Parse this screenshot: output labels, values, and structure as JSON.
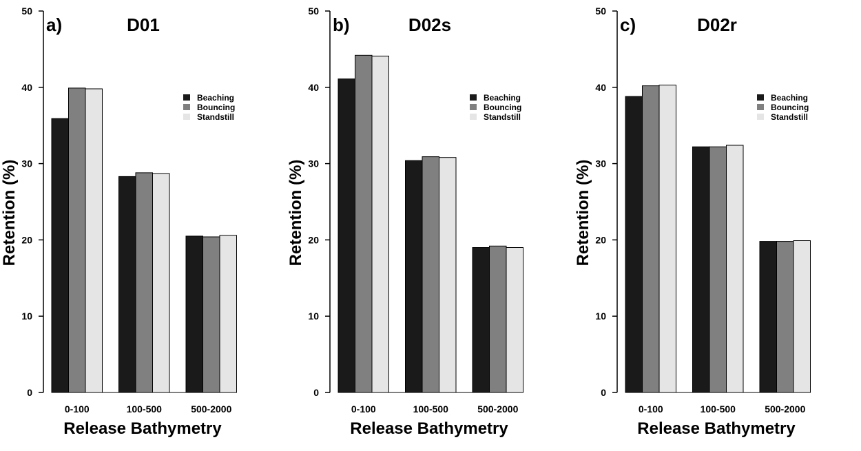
{
  "chart_data": [
    {
      "type": "bar",
      "panel_label": "a)",
      "title": "D01",
      "xlabel": "Release Bathymetry",
      "ylabel": "Retention (%)",
      "ylim": [
        0,
        50
      ],
      "yticks": [
        "0",
        "10",
        "20",
        "30",
        "40",
        "50"
      ],
      "categories": [
        "0-100",
        "100-500",
        "500-2000"
      ],
      "series": [
        {
          "name": "Beaching",
          "color": "#1a1a1a",
          "values": [
            35.9,
            28.3,
            20.5
          ]
        },
        {
          "name": "Bouncing",
          "color": "#808080",
          "values": [
            39.9,
            28.8,
            20.4
          ]
        },
        {
          "name": "Standstill",
          "color": "#e5e5e5",
          "values": [
            39.8,
            28.7,
            20.6
          ]
        }
      ],
      "legend_position": "top-right",
      "grid": false
    },
    {
      "type": "bar",
      "panel_label": "b)",
      "title": "D02s",
      "xlabel": "Release Bathymetry",
      "ylabel": "Retention (%)",
      "ylim": [
        0,
        50
      ],
      "yticks": [
        "0",
        "10",
        "20",
        "30",
        "40",
        "50"
      ],
      "categories": [
        "0-100",
        "100-500",
        "500-2000"
      ],
      "series": [
        {
          "name": "Beaching",
          "color": "#1a1a1a",
          "values": [
            41.1,
            30.4,
            19.0
          ]
        },
        {
          "name": "Bouncing",
          "color": "#808080",
          "values": [
            44.2,
            30.9,
            19.2
          ]
        },
        {
          "name": "Standstill",
          "color": "#e5e5e5",
          "values": [
            44.1,
            30.8,
            19.0
          ]
        }
      ],
      "legend_position": "top-right",
      "grid": false
    },
    {
      "type": "bar",
      "panel_label": "c)",
      "title": "D02r",
      "xlabel": "Release Bathymetry",
      "ylabel": "Retention (%)",
      "ylim": [
        0,
        50
      ],
      "yticks": [
        "0",
        "10",
        "20",
        "30",
        "40",
        "50"
      ],
      "categories": [
        "0-100",
        "100-500",
        "500-2000"
      ],
      "series": [
        {
          "name": "Beaching",
          "color": "#1a1a1a",
          "values": [
            38.8,
            32.2,
            19.8
          ]
        },
        {
          "name": "Bouncing",
          "color": "#808080",
          "values": [
            40.2,
            32.2,
            19.8
          ]
        },
        {
          "name": "Standstill",
          "color": "#e5e5e5",
          "values": [
            40.3,
            32.4,
            19.9
          ]
        }
      ],
      "legend_position": "top-right",
      "grid": false
    }
  ]
}
